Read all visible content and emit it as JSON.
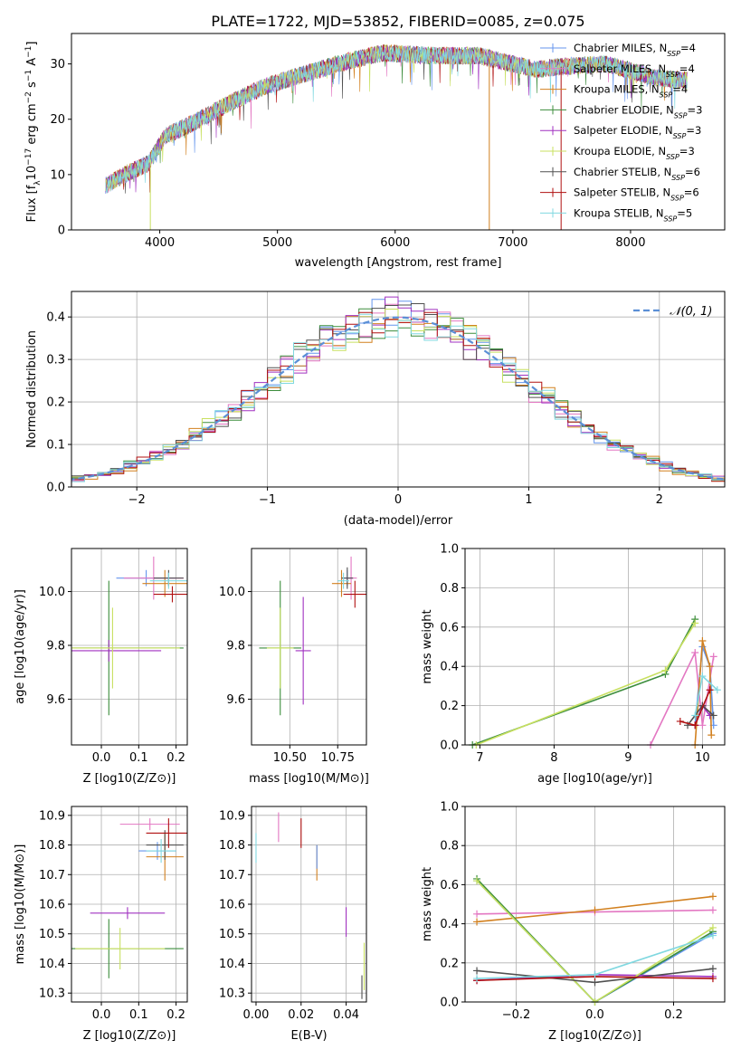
{
  "figure_title": "PLATE=1722, MJD=53852, FIBERID=0085, z=0.075",
  "colors": {
    "chabrier_miles": "#6495ed",
    "salpeter_miles": "#e377c2",
    "kroupa_miles": "#d2801f",
    "chabrier_elodie": "#3c8d3c",
    "salpeter_elodie": "#a030c0",
    "kroupa_elodie": "#c8e060",
    "chabrier_stelib": "#505050",
    "salpeter_stelib": "#b01010",
    "kroupa_stelib": "#80d8e0",
    "normal_curve": "#5b8fd6"
  },
  "chart_data": [
    {
      "id": "spectrum",
      "type": "line",
      "xlabel": "wavelength [Angstrom, rest frame]",
      "ylabel_parts": [
        "Flux [f",
        "λ",
        "10",
        "−17",
        " erg cm",
        "−2",
        " s",
        "−1",
        " A",
        "−1",
        "]"
      ],
      "xlim": [
        3250,
        8800
      ],
      "ylim": [
        0,
        35.5
      ],
      "xticks": [
        4000,
        5000,
        6000,
        7000,
        8000
      ],
      "yticks": [
        0,
        10,
        20,
        30
      ],
      "x_range": [
        3540,
        8480
      ],
      "continuum_nodes": [
        [
          3540,
          8
        ],
        [
          3700,
          10
        ],
        [
          3900,
          12
        ],
        [
          4050,
          17
        ],
        [
          4300,
          19.5
        ],
        [
          4600,
          23
        ],
        [
          4900,
          26
        ],
        [
          5200,
          28
        ],
        [
          5600,
          30.5
        ],
        [
          5900,
          32
        ],
        [
          6300,
          31.5
        ],
        [
          6700,
          31.5
        ],
        [
          7000,
          30
        ],
        [
          7200,
          29
        ],
        [
          7400,
          29.5
        ],
        [
          7800,
          30
        ],
        [
          8200,
          27.5
        ],
        [
          8480,
          27
        ]
      ],
      "spikes": [
        [
          3920,
          0
        ],
        [
          6800,
          0
        ],
        [
          7410,
          0
        ]
      ],
      "legend": [
        {
          "model": "Chabrier MILES",
          "sub": "SSP",
          "n": "4"
        },
        {
          "model": "Salpeter MILES",
          "sub": "SSP",
          "n": "4"
        },
        {
          "model": "Kroupa MILES",
          "sub": "SSP",
          "n": "4"
        },
        {
          "model": "Chabrier ELODIE",
          "sub": "SSP",
          "n": "3"
        },
        {
          "model": "Salpeter ELODIE",
          "sub": "SSP",
          "n": "3"
        },
        {
          "model": "Kroupa ELODIE",
          "sub": "SSP",
          "n": "3"
        },
        {
          "model": "Chabrier STELIB",
          "sub": "SSP",
          "n": "6"
        },
        {
          "model": "Salpeter STELIB",
          "sub": "SSP",
          "n": "6"
        },
        {
          "model": "Kroupa STELIB",
          "sub": "SSP",
          "n": "5"
        }
      ]
    },
    {
      "id": "residuals",
      "type": "histogram",
      "xlabel": "(data-model)/error",
      "ylabel": "Normed distribution",
      "xlim": [
        -2.5,
        2.5
      ],
      "ylim": [
        0,
        0.46
      ],
      "xticks": [
        -2,
        -1,
        0,
        1,
        2
      ],
      "yticks": [
        0.0,
        0.1,
        0.2,
        0.3,
        0.4
      ],
      "bin_width": 0.1,
      "grid": true,
      "legend_label": "𝒩(0, 1)",
      "legend_position": "top-right"
    },
    {
      "id": "age_vs_Z",
      "type": "errorbar",
      "xlabel": "Z [log10(Z/Z⊙)]",
      "ylabel": "age  [log10(age/yr)]",
      "xlim": [
        -0.08,
        0.23
      ],
      "ylim": [
        9.43,
        10.16
      ],
      "xticks": [
        0.0,
        0.1,
        0.2
      ],
      "yticks": [
        9.6,
        9.8,
        10.0
      ],
      "grid": true,
      "points": [
        {
          "series": "chabrier_miles",
          "x": 0.12,
          "y": 10.05,
          "xerr": 0.08,
          "yerr": 0.03
        },
        {
          "series": "salpeter_miles",
          "x": 0.14,
          "y": 10.05,
          "xerr": 0.08,
          "yerr": 0.08
        },
        {
          "series": "kroupa_miles",
          "x": 0.17,
          "y": 10.03,
          "xerr": 0.06,
          "yerr": 0.05
        },
        {
          "series": "chabrier_elodie",
          "x": 0.02,
          "y": 9.79,
          "xerr": 0.2,
          "yerr": 0.25
        },
        {
          "series": "salpeter_elodie",
          "x": 0.02,
          "y": 9.78,
          "xerr": 0.14,
          "yerr": 0.04
        },
        {
          "series": "kroupa_elodie",
          "x": 0.03,
          "y": 9.79,
          "xerr": 0.18,
          "yerr": 0.15
        },
        {
          "series": "chabrier_stelib",
          "x": 0.18,
          "y": 10.05,
          "xerr": 0.04,
          "yerr": 0.03
        },
        {
          "series": "salpeter_stelib",
          "x": 0.19,
          "y": 9.99,
          "xerr": 0.05,
          "yerr": 0.03
        },
        {
          "series": "kroupa_stelib",
          "x": 0.18,
          "y": 10.04,
          "xerr": 0.05,
          "yerr": 0.03
        }
      ]
    },
    {
      "id": "age_vs_mass",
      "type": "errorbar",
      "xlabel": "mass [log10(M/M⊙)]",
      "ylabel": "",
      "xlim": [
        10.3,
        10.9
      ],
      "ylim": [
        9.43,
        10.16
      ],
      "xticks": [
        10.5,
        10.75
      ],
      "yticks": [
        9.6,
        9.8,
        10.0
      ],
      "grid": true,
      "points": [
        {
          "series": "chabrier_miles",
          "x": 10.8,
          "y": 10.05,
          "xerr": 0.03,
          "yerr": 0.03
        },
        {
          "series": "salpeter_miles",
          "x": 10.82,
          "y": 10.05,
          "xerr": 0.03,
          "yerr": 0.08
        },
        {
          "series": "kroupa_miles",
          "x": 10.77,
          "y": 10.03,
          "xerr": 0.05,
          "yerr": 0.05
        },
        {
          "series": "chabrier_elodie",
          "x": 10.45,
          "y": 9.79,
          "xerr": 0.11,
          "yerr": 0.25
        },
        {
          "series": "salpeter_elodie",
          "x": 10.57,
          "y": 9.78,
          "xerr": 0.04,
          "yerr": 0.2
        },
        {
          "series": "kroupa_elodie",
          "x": 10.45,
          "y": 9.79,
          "xerr": 0.07,
          "yerr": 0.15
        },
        {
          "series": "chabrier_stelib",
          "x": 10.8,
          "y": 10.05,
          "xerr": 0.03,
          "yerr": 0.04
        },
        {
          "series": "salpeter_stelib",
          "x": 10.84,
          "y": 9.99,
          "xerr": 0.06,
          "yerr": 0.05
        },
        {
          "series": "kroupa_stelib",
          "x": 10.78,
          "y": 10.04,
          "xerr": 0.03,
          "yerr": 0.03
        }
      ]
    },
    {
      "id": "weight_vs_age",
      "type": "line",
      "xlabel": "age  [log10(age/yr)]",
      "ylabel": "mass weight",
      "xlim": [
        6.8,
        10.3
      ],
      "ylim": [
        0,
        1.0
      ],
      "xticks": [
        7,
        8,
        9,
        10
      ],
      "yticks": [
        0.0,
        0.2,
        0.4,
        0.6,
        0.8,
        1.0
      ],
      "grid": true,
      "series": [
        {
          "series": "chabrier_miles",
          "points": [
            [
              9.9,
              0.1
            ],
            [
              10.0,
              0.5
            ],
            [
              10.1,
              0.4
            ],
            [
              10.15,
              0.1
            ]
          ]
        },
        {
          "series": "salpeter_miles",
          "points": [
            [
              9.3,
              0.0
            ],
            [
              9.9,
              0.47
            ],
            [
              10.0,
              0.1
            ],
            [
              10.15,
              0.45
            ]
          ]
        },
        {
          "series": "kroupa_miles",
          "points": [
            [
              9.9,
              0.0
            ],
            [
              10.0,
              0.53
            ],
            [
              10.1,
              0.4
            ],
            [
              10.12,
              0.05
            ]
          ]
        },
        {
          "series": "chabrier_elodie",
          "points": [
            [
              6.9,
              0.0
            ],
            [
              9.5,
              0.36
            ],
            [
              9.9,
              0.64
            ]
          ]
        },
        {
          "series": "salpeter_elodie",
          "points": [
            [
              9.9,
              0.1
            ],
            [
              10.0,
              0.2
            ],
            [
              10.1,
              0.15
            ]
          ]
        },
        {
          "series": "kroupa_elodie",
          "points": [
            [
              6.95,
              0.0
            ],
            [
              9.5,
              0.38
            ],
            [
              9.9,
              0.62
            ]
          ]
        },
        {
          "series": "chabrier_stelib",
          "points": [
            [
              9.8,
              0.1
            ],
            [
              10.0,
              0.2
            ],
            [
              10.15,
              0.15
            ]
          ]
        },
        {
          "series": "salpeter_stelib",
          "points": [
            [
              9.7,
              0.12
            ],
            [
              9.9,
              0.1
            ],
            [
              10.1,
              0.28
            ]
          ]
        },
        {
          "series": "kroupa_stelib",
          "points": [
            [
              9.9,
              0.15
            ],
            [
              10.0,
              0.35
            ],
            [
              10.2,
              0.28
            ]
          ]
        }
      ]
    },
    {
      "id": "mass_vs_Z",
      "type": "errorbar",
      "xlabel": "Z [log10(Z/Z⊙)]",
      "ylabel": "mass [log10(M/M⊙)]",
      "xlim": [
        -0.08,
        0.23
      ],
      "ylim": [
        10.27,
        10.93
      ],
      "xticks": [
        0.0,
        0.1,
        0.2
      ],
      "yticks": [
        10.3,
        10.4,
        10.5,
        10.6,
        10.7,
        10.8,
        10.9
      ],
      "grid": true,
      "points": [
        {
          "series": "chabrier_miles",
          "x": 0.15,
          "y": 10.78,
          "xerr": 0.05,
          "yerr": 0.03
        },
        {
          "series": "salpeter_miles",
          "x": 0.13,
          "y": 10.87,
          "xerr": 0.08,
          "yerr": 0.02
        },
        {
          "series": "kroupa_miles",
          "x": 0.17,
          "y": 10.76,
          "xerr": 0.05,
          "yerr": 0.08
        },
        {
          "series": "chabrier_elodie",
          "x": 0.02,
          "y": 10.45,
          "xerr": 0.2,
          "yerr": 0.1
        },
        {
          "series": "salpeter_elodie",
          "x": 0.07,
          "y": 10.57,
          "xerr": 0.1,
          "yerr": 0.02
        },
        {
          "series": "kroupa_elodie",
          "x": 0.05,
          "y": 10.45,
          "xerr": 0.12,
          "yerr": 0.07
        },
        {
          "series": "chabrier_stelib",
          "x": 0.17,
          "y": 10.8,
          "xerr": 0.05,
          "yerr": 0.05
        },
        {
          "series": "salpeter_stelib",
          "x": 0.18,
          "y": 10.84,
          "xerr": 0.06,
          "yerr": 0.05
        },
        {
          "series": "kroupa_stelib",
          "x": 0.16,
          "y": 10.78,
          "xerr": 0.04,
          "yerr": 0.04
        }
      ]
    },
    {
      "id": "mass_vs_ebv",
      "type": "errorbar",
      "xlabel": "E(B-V)",
      "ylabel": "",
      "xlim": [
        -0.002,
        0.049
      ],
      "ylim": [
        10.27,
        10.93
      ],
      "xticks": [
        0.0,
        0.02,
        0.04
      ],
      "yticks": [
        10.3,
        10.4,
        10.5,
        10.6,
        10.7,
        10.8,
        10.9
      ],
      "grid": true,
      "points": [
        {
          "series": "kroupa_stelib",
          "x": 0.0,
          "y": 10.79,
          "xerr": 0.0,
          "yerr": 0.05
        },
        {
          "series": "salpeter_miles",
          "x": 0.01,
          "y": 10.86,
          "xerr": 0.0,
          "yerr": 0.05
        },
        {
          "series": "salpeter_stelib",
          "x": 0.02,
          "y": 10.84,
          "xerr": 0.0,
          "yerr": 0.05
        },
        {
          "series": "kroupa_miles",
          "x": 0.027,
          "y": 10.74,
          "xerr": 0.0,
          "yerr": 0.06
        },
        {
          "series": "chabrier_miles",
          "x": 0.027,
          "y": 10.76,
          "xerr": 0.0,
          "yerr": 0.04
        },
        {
          "series": "salpeter_elodie",
          "x": 0.04,
          "y": 10.54,
          "xerr": 0.0,
          "yerr": 0.05
        },
        {
          "series": "kroupa_elodie",
          "x": 0.048,
          "y": 10.39,
          "xerr": 0.0,
          "yerr": 0.08
        },
        {
          "series": "chabrier_stelib",
          "x": 0.047,
          "y": 10.32,
          "xerr": 0.0,
          "yerr": 0.04
        }
      ]
    },
    {
      "id": "weight_vs_Z",
      "type": "line",
      "xlabel": "Z [log10(Z/Z⊙)]",
      "ylabel": "mass weight",
      "xlim": [
        -0.33,
        0.33
      ],
      "ylim": [
        0,
        1.0
      ],
      "xticks": [
        -0.2,
        0.0,
        0.2
      ],
      "yticks": [
        0.0,
        0.2,
        0.4,
        0.6,
        0.8,
        1.0
      ],
      "grid": true,
      "series": [
        {
          "series": "chabrier_miles",
          "points": [
            [
              -0.3,
              0.62
            ],
            [
              0.0,
              0.0
            ],
            [
              0.3,
              0.35
            ]
          ]
        },
        {
          "series": "salpeter_miles",
          "points": [
            [
              -0.3,
              0.45
            ],
            [
              0.0,
              0.46
            ],
            [
              0.3,
              0.47
            ]
          ]
        },
        {
          "series": "kroupa_miles",
          "points": [
            [
              -0.3,
              0.41
            ],
            [
              0.0,
              0.47
            ],
            [
              0.3,
              0.54
            ]
          ]
        },
        {
          "series": "chabrier_elodie",
          "points": [
            [
              -0.3,
              0.63
            ],
            [
              0.0,
              0.0
            ],
            [
              0.3,
              0.36
            ]
          ]
        },
        {
          "series": "salpeter_elodie",
          "points": [
            [
              -0.3,
              0.11
            ],
            [
              0.0,
              0.14
            ],
            [
              0.3,
              0.13
            ]
          ]
        },
        {
          "series": "kroupa_elodie",
          "points": [
            [
              -0.3,
              0.62
            ],
            [
              0.0,
              0.0
            ],
            [
              0.3,
              0.38
            ]
          ]
        },
        {
          "series": "chabrier_stelib",
          "points": [
            [
              -0.3,
              0.16
            ],
            [
              0.0,
              0.1
            ],
            [
              0.3,
              0.17
            ]
          ]
        },
        {
          "series": "salpeter_stelib",
          "points": [
            [
              -0.3,
              0.11
            ],
            [
              0.0,
              0.13
            ],
            [
              0.3,
              0.12
            ]
          ]
        },
        {
          "series": "kroupa_stelib",
          "points": [
            [
              -0.3,
              0.12
            ],
            [
              0.0,
              0.14
            ],
            [
              0.3,
              0.34
            ]
          ]
        }
      ]
    }
  ]
}
